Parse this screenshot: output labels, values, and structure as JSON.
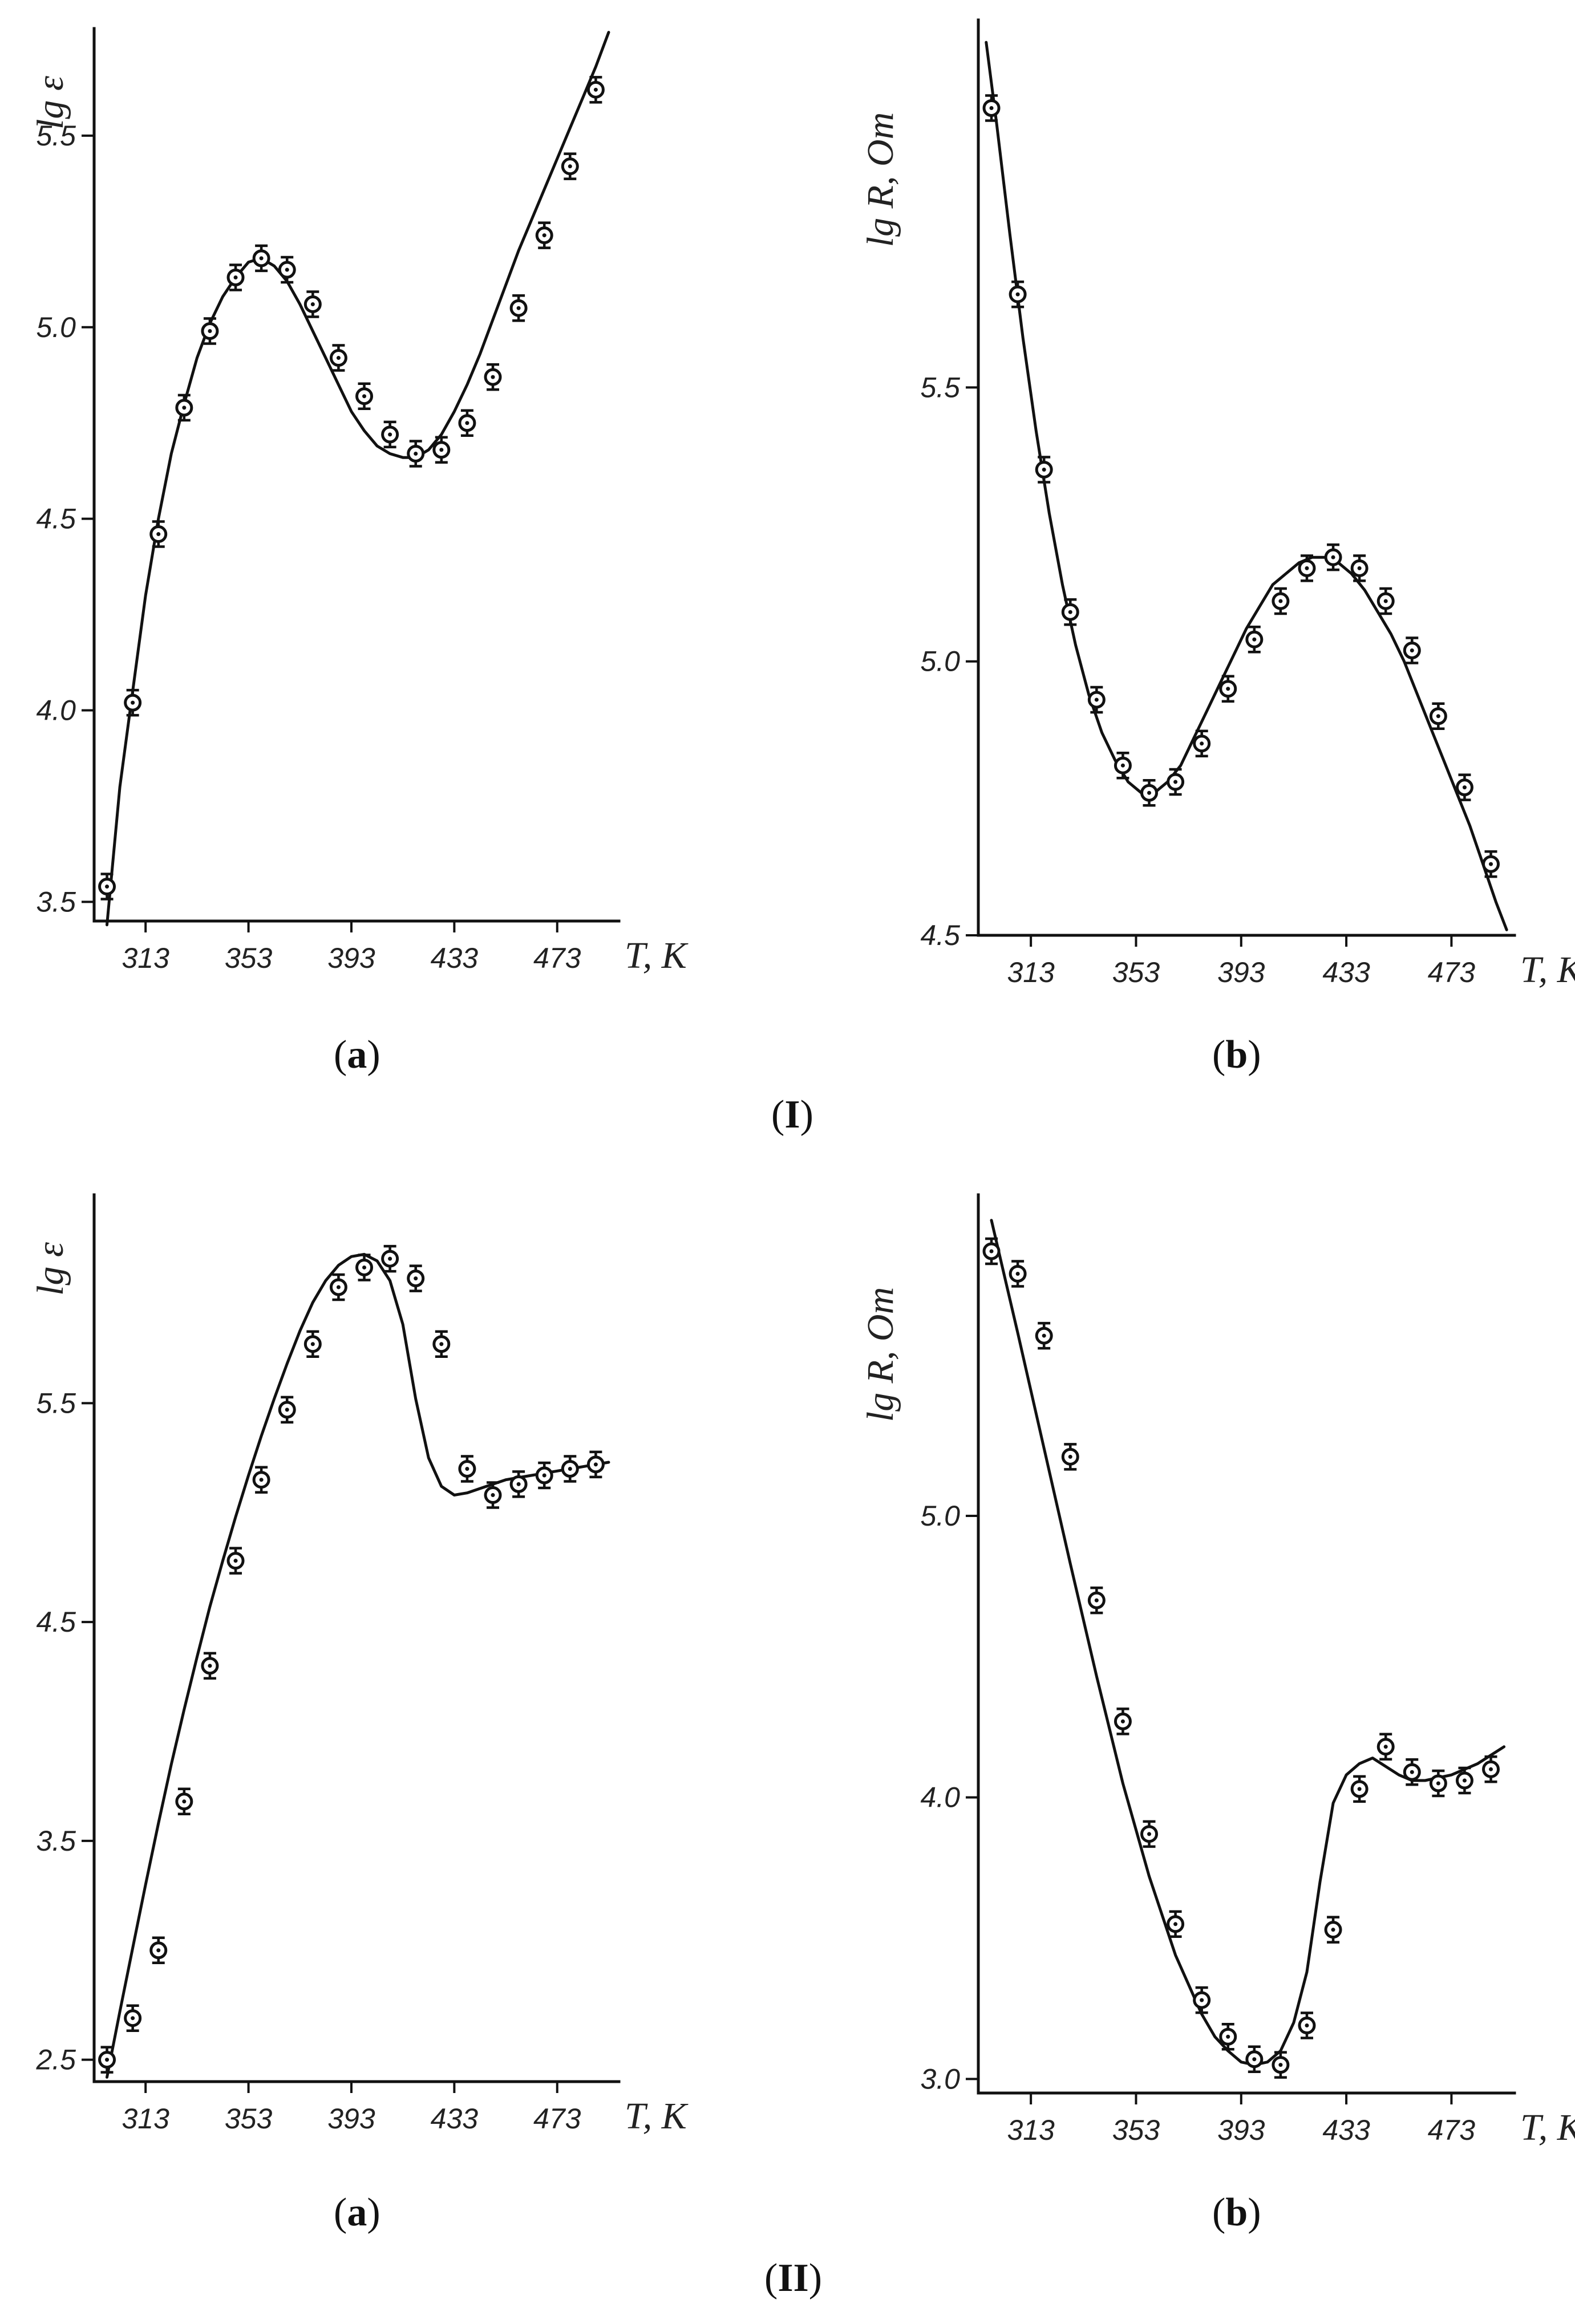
{
  "figure": {
    "group_labels": [
      {
        "open": "(",
        "id": "I",
        "close": ")"
      },
      {
        "open": "(",
        "id": "II",
        "close": ")"
      }
    ],
    "panel_labels": [
      {
        "open": "(",
        "id": "a",
        "close": ")"
      },
      {
        "open": "(",
        "id": "b",
        "close": ")"
      },
      {
        "open": "(",
        "id": "a",
        "close": ")"
      },
      {
        "open": "(",
        "id": "b",
        "close": ")"
      }
    ]
  },
  "chart_data": [
    {
      "type": "line",
      "group": "I",
      "panel": "a",
      "title": "",
      "xlabel": "T, K",
      "ylabel": "lg ε",
      "xlim": [
        293,
        497
      ],
      "ylim": [
        3.45,
        5.75
      ],
      "x_ticks": [
        "313",
        "353",
        "393",
        "433",
        "473"
      ],
      "y_ticks": [
        "3.5",
        "4.0",
        "4.5",
        "5.0",
        "5.5"
      ],
      "grid": false,
      "legend": "none",
      "points": {
        "x": [
          298,
          308,
          318,
          328,
          338,
          348,
          358,
          368,
          378,
          388,
          398,
          408,
          418,
          428,
          438,
          448,
          458,
          468,
          478,
          488
        ],
        "y": [
          3.54,
          4.02,
          4.46,
          4.79,
          4.99,
          5.13,
          5.18,
          5.15,
          5.06,
          4.92,
          4.82,
          4.72,
          4.67,
          4.68,
          4.75,
          4.87,
          5.05,
          5.24,
          5.42,
          5.62
        ]
      },
      "curve": {
        "x": [
          298,
          303,
          308,
          313,
          318,
          323,
          328,
          333,
          338,
          343,
          348,
          353,
          358,
          363,
          368,
          373,
          378,
          383,
          388,
          393,
          398,
          403,
          408,
          413,
          418,
          423,
          428,
          433,
          438,
          443,
          448,
          453,
          458,
          463,
          468,
          473,
          478,
          483,
          488,
          493
        ],
        "y": [
          3.44,
          3.8,
          4.05,
          4.3,
          4.5,
          4.67,
          4.8,
          4.92,
          5.01,
          5.08,
          5.13,
          5.17,
          5.18,
          5.16,
          5.12,
          5.06,
          4.99,
          4.92,
          4.85,
          4.78,
          4.73,
          4.69,
          4.67,
          4.66,
          4.66,
          4.68,
          4.72,
          4.78,
          4.85,
          4.93,
          5.02,
          5.11,
          5.2,
          5.28,
          5.36,
          5.44,
          5.52,
          5.6,
          5.68,
          5.77
        ]
      }
    },
    {
      "type": "line",
      "group": "I",
      "panel": "b",
      "title": "",
      "xlabel": "T, K",
      "ylabel": "lg R, Om",
      "xlim": [
        293,
        497
      ],
      "ylim": [
        4.5,
        6.15
      ],
      "x_ticks": [
        "313",
        "353",
        "393",
        "433",
        "473"
      ],
      "y_ticks": [
        "4.5",
        "5.0",
        "5.5"
      ],
      "grid": false,
      "legend": "none",
      "points": {
        "x": [
          298,
          308,
          318,
          328,
          338,
          348,
          358,
          368,
          378,
          388,
          398,
          408,
          418,
          428,
          438,
          448,
          458,
          468,
          478,
          488
        ],
        "y": [
          6.01,
          5.67,
          5.35,
          5.09,
          4.93,
          4.81,
          4.76,
          4.78,
          4.85,
          4.95,
          5.04,
          5.11,
          5.17,
          5.19,
          5.17,
          5.11,
          5.02,
          4.9,
          4.77,
          4.63
        ]
      },
      "curve": {
        "x": [
          296,
          300,
          305,
          310,
          315,
          320,
          325,
          330,
          335,
          340,
          345,
          350,
          355,
          360,
          365,
          370,
          375,
          380,
          385,
          390,
          395,
          400,
          405,
          410,
          415,
          420,
          425,
          430,
          435,
          440,
          445,
          450,
          455,
          460,
          465,
          470,
          475,
          480,
          485,
          490,
          494
        ],
        "y": [
          6.13,
          5.98,
          5.78,
          5.59,
          5.42,
          5.27,
          5.14,
          5.03,
          4.94,
          4.87,
          4.82,
          4.78,
          4.76,
          4.76,
          4.78,
          4.81,
          4.86,
          4.91,
          4.96,
          5.01,
          5.06,
          5.1,
          5.14,
          5.16,
          5.18,
          5.19,
          5.19,
          5.18,
          5.16,
          5.13,
          5.09,
          5.05,
          5.0,
          4.94,
          4.88,
          4.82,
          4.76,
          4.7,
          4.63,
          4.56,
          4.51
        ]
      }
    },
    {
      "type": "line",
      "group": "II",
      "panel": "a",
      "title": "",
      "xlabel": "T, K",
      "ylabel": "lg ε",
      "xlim": [
        293,
        497
      ],
      "ylim": [
        2.4,
        6.4
      ],
      "x_ticks": [
        "313",
        "353",
        "393",
        "433",
        "473"
      ],
      "y_ticks": [
        "2.5",
        "3.5",
        "4.5",
        "5.5"
      ],
      "grid": false,
      "legend": "none",
      "points": {
        "x": [
          298,
          308,
          318,
          328,
          338,
          348,
          358,
          368,
          378,
          388,
          398,
          408,
          418,
          428,
          438,
          448,
          458,
          468,
          478,
          488
        ],
        "y": [
          2.5,
          2.69,
          3.0,
          3.68,
          4.3,
          4.78,
          5.15,
          5.47,
          5.77,
          6.03,
          6.12,
          6.16,
          6.07,
          5.77,
          5.2,
          5.08,
          5.13,
          5.17,
          5.2,
          5.22
        ]
      },
      "curve": {
        "x": [
          298,
          303,
          308,
          313,
          318,
          323,
          328,
          333,
          338,
          343,
          348,
          353,
          358,
          363,
          368,
          373,
          378,
          383,
          388,
          393,
          398,
          403,
          408,
          413,
          418,
          423,
          428,
          433,
          438,
          443,
          448,
          453,
          458,
          463,
          468,
          473,
          478,
          483,
          488,
          493
        ],
        "y": [
          2.42,
          2.72,
          3.01,
          3.3,
          3.58,
          3.85,
          4.1,
          4.34,
          4.57,
          4.78,
          4.98,
          5.17,
          5.35,
          5.52,
          5.68,
          5.83,
          5.96,
          6.06,
          6.13,
          6.17,
          6.18,
          6.15,
          6.06,
          5.86,
          5.52,
          5.25,
          5.12,
          5.08,
          5.09,
          5.11,
          5.13,
          5.15,
          5.16,
          5.17,
          5.18,
          5.19,
          5.2,
          5.21,
          5.22,
          5.23
        ]
      }
    },
    {
      "type": "line",
      "group": "II",
      "panel": "b",
      "title": "",
      "xlabel": "T, K",
      "ylabel": "lg R, Om",
      "xlim": [
        293,
        497
      ],
      "ylim": [
        2.95,
        6.1
      ],
      "x_ticks": [
        "313",
        "353",
        "393",
        "433",
        "473"
      ],
      "y_ticks": [
        "3.0",
        "4.0",
        "5.0"
      ],
      "grid": false,
      "legend": "none",
      "points": {
        "x": [
          298,
          308,
          318,
          328,
          338,
          348,
          358,
          368,
          378,
          388,
          398,
          408,
          418,
          428,
          438,
          448,
          458,
          468,
          478,
          488
        ],
        "y": [
          5.94,
          5.86,
          5.64,
          5.21,
          4.7,
          4.27,
          3.87,
          3.55,
          3.28,
          3.15,
          3.07,
          3.05,
          3.19,
          3.53,
          4.03,
          4.18,
          4.09,
          4.05,
          4.06,
          4.1
        ]
      },
      "curve": {
        "x": [
          298,
          308,
          318,
          328,
          338,
          348,
          358,
          368,
          378,
          383,
          388,
          393,
          398,
          403,
          408,
          413,
          418,
          423,
          428,
          433,
          438,
          443,
          448,
          453,
          458,
          463,
          468,
          473,
          478,
          483,
          488,
          493
        ],
        "y": [
          6.05,
          5.65,
          5.24,
          4.83,
          4.43,
          4.05,
          3.72,
          3.44,
          3.23,
          3.15,
          3.1,
          3.06,
          3.05,
          3.06,
          3.1,
          3.2,
          3.38,
          3.7,
          3.98,
          4.08,
          4.12,
          4.14,
          4.11,
          4.08,
          4.06,
          4.06,
          4.07,
          4.08,
          4.1,
          4.12,
          4.15,
          4.18
        ]
      }
    }
  ]
}
